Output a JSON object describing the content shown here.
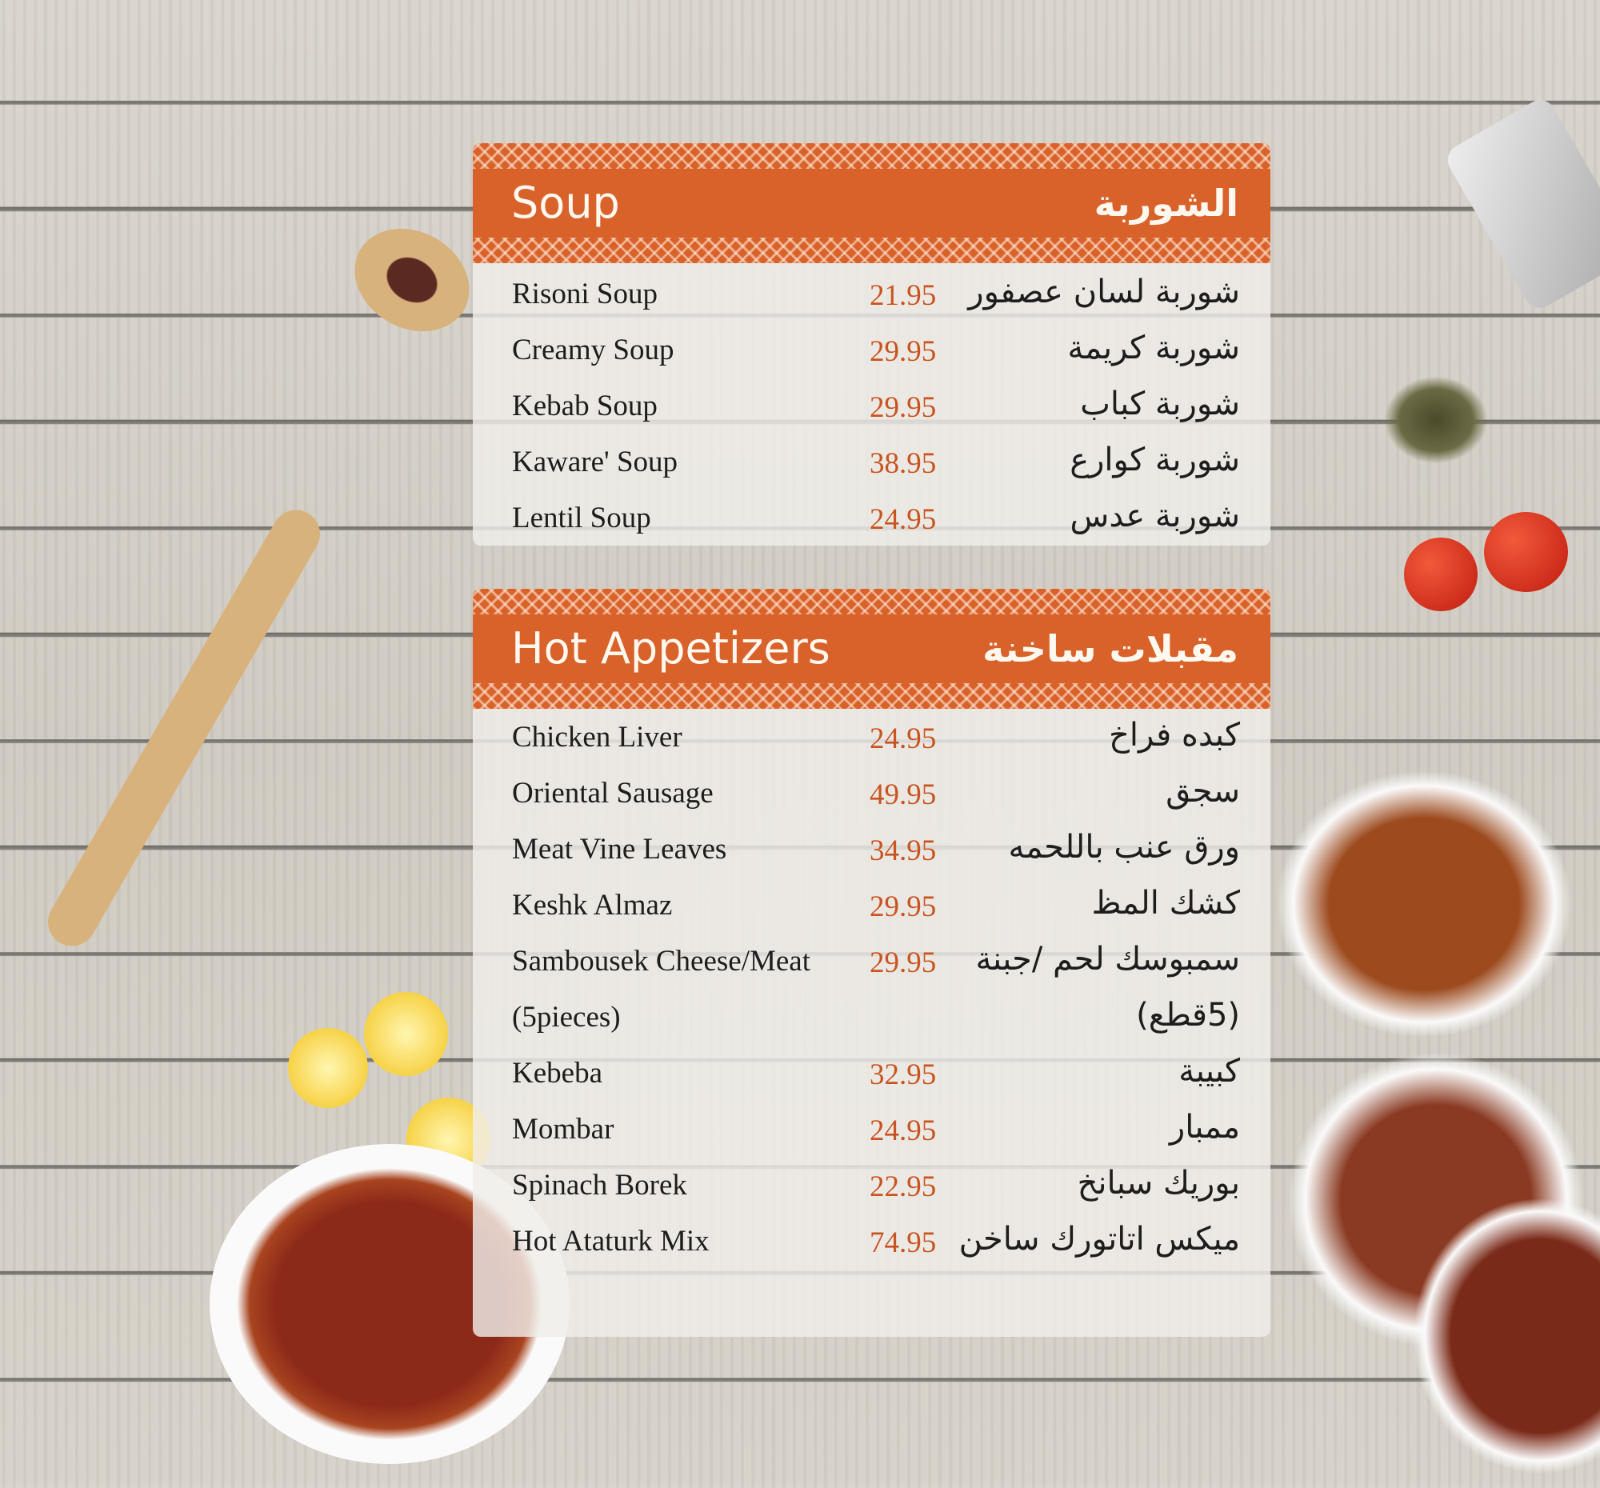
{
  "soup": {
    "title_en": "Soup",
    "title_ar": "الشوربة",
    "items": [
      {
        "en": "Risoni Soup",
        "price": "21.95",
        "ar": "شوربة لسان عصفور"
      },
      {
        "en": "Creamy Soup",
        "price": "29.95",
        "ar": "شوربة كريمة"
      },
      {
        "en": "Kebab Soup",
        "price": "29.95",
        "ar": "شوربة كباب"
      },
      {
        "en": "Kaware' Soup",
        "price": "38.95",
        "ar": "شوربة كوارع"
      },
      {
        "en": "Lentil Soup",
        "price": "24.95",
        "ar": "شوربة عدس"
      }
    ]
  },
  "hot_appetizers": {
    "title_en": "Hot Appetizers",
    "title_ar": "مقبلات ساخنة",
    "items": [
      {
        "en": "Chicken Liver",
        "price": "24.95",
        "ar": "كبده فراخ"
      },
      {
        "en": "Oriental Sausage",
        "price": "49.95",
        "ar": "سجق"
      },
      {
        "en": "Meat Vine Leaves",
        "price": "34.95",
        "ar": "ورق عنب باللحمه"
      },
      {
        "en": "Keshk Almaz",
        "price": "29.95",
        "ar": "كشك المظ"
      },
      {
        "en": "Sambousek Cheese/Meat",
        "price": "29.95",
        "ar": "سمبوسك لحم /جبنة"
      },
      {
        "en": "(5pieces)",
        "price": "",
        "ar": "(5قطع)"
      },
      {
        "en": "Kebeba",
        "price": "32.95",
        "ar": "كبيبة"
      },
      {
        "en": "Mombar",
        "price": "24.95",
        "ar": "ممبار"
      },
      {
        "en": "Spinach Borek",
        "price": "22.95",
        "ar": "بوريك سبانخ"
      },
      {
        "en": "Hot Ataturk Mix",
        "price": "74.95",
        "ar": "ميكس اتاتورك ساخن"
      }
    ]
  },
  "colors": {
    "accent": "#d9622b",
    "price": "#c9541f"
  }
}
